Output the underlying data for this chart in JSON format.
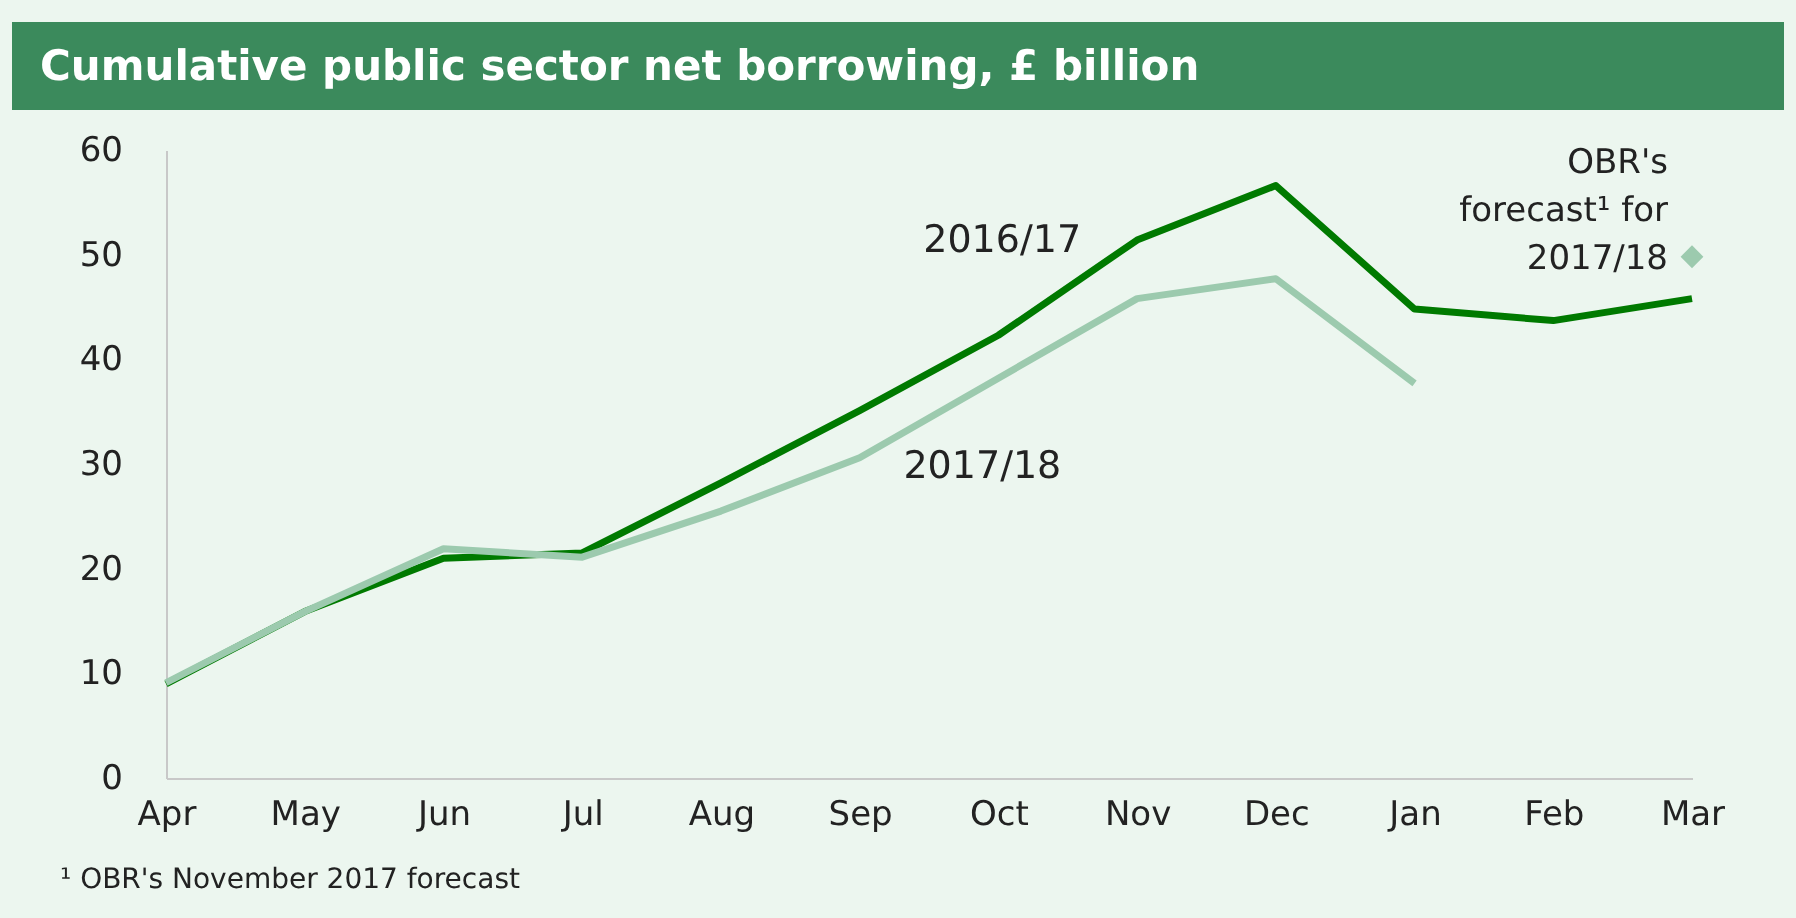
{
  "chart_data": {
    "type": "line",
    "title": "Cumulative public sector net borrowing, £ billion",
    "categories": [
      "Apr",
      "May",
      "Jun",
      "Jul",
      "Aug",
      "Sep",
      "Oct",
      "Nov",
      "Dec",
      "Jan",
      "Feb",
      "Mar"
    ],
    "series": [
      {
        "name": "2016/17",
        "color": "#007a00",
        "values": [
          9.0,
          15.9,
          21.0,
          21.5,
          28.2,
          35.1,
          42.3,
          51.4,
          56.6,
          44.8,
          43.7,
          45.8
        ]
      },
      {
        "name": "2017/18",
        "color": "#9ccaae",
        "values": [
          9.1,
          15.9,
          21.9,
          21.1,
          25.5,
          30.6,
          38.2,
          45.8,
          47.7,
          37.7,
          null,
          null
        ]
      },
      {
        "type": "scatter",
        "marker": "diamond",
        "color": "#9ccaae",
        "values": [
          null,
          null,
          null,
          null,
          null,
          null,
          null,
          null,
          null,
          null,
          null,
          49.8
        ]
      }
    ],
    "ylim": [
      0,
      60
    ],
    "yticks": [
      0,
      10,
      20,
      30,
      40,
      50,
      60
    ],
    "grid": false,
    "marker": "none",
    "line_style": "solid",
    "annotations": [
      {
        "text": "OBR's forecast¹ for 2017/18",
        "x": "Mar",
        "y": 49.8
      },
      "¹ OBR's November 2017 forecast"
    ]
  }
}
